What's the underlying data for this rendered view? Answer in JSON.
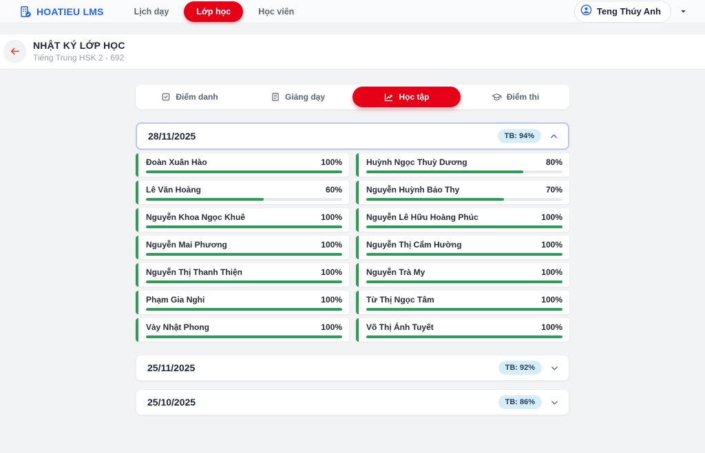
{
  "colors": {
    "accent_red": "#e60017",
    "brand_blue": "#2563eb",
    "progress_green": "#2e9b57",
    "badge_bg": "#d7eef9",
    "expanded_border": "#b9c6f2"
  },
  "navbar": {
    "brand": "HOATIEU LMS",
    "items": [
      {
        "label": "Lịch dạy",
        "active": false
      },
      {
        "label": "Lớp học",
        "active": true
      },
      {
        "label": "Học viên",
        "active": false
      }
    ],
    "user": {
      "name": "Teng Thúy Anh"
    }
  },
  "page_header": {
    "title": "NHẬT KÝ LỚP HỌC",
    "subtitle": "Tiếng Trung HSK 2 - 692"
  },
  "tabs": [
    {
      "label": "Điểm danh",
      "icon": "checkbox-icon",
      "active": false
    },
    {
      "label": "Giảng dạy",
      "icon": "journal-icon",
      "active": false
    },
    {
      "label": "Học tập",
      "icon": "chart-line-icon",
      "active": true
    },
    {
      "label": "Điểm thi",
      "icon": "graduation-cap-icon",
      "active": false
    }
  ],
  "sections": [
    {
      "date": "28/11/2025",
      "average_label": "TB: 94%",
      "expanded": true,
      "students": [
        {
          "name": "Đoàn Xuân Hào",
          "percent": 100,
          "percent_label": "100%"
        },
        {
          "name": "Huỳnh Ngọc Thuỳ Dương",
          "percent": 80,
          "percent_label": "80%"
        },
        {
          "name": "Lê Văn Hoàng",
          "percent": 60,
          "percent_label": "60%"
        },
        {
          "name": "Nguyễn Huỳnh Bảo Thy",
          "percent": 70,
          "percent_label": "70%"
        },
        {
          "name": "Nguyễn Khoa Ngọc Khuê",
          "percent": 100,
          "percent_label": "100%"
        },
        {
          "name": "Nguyễn Lê Hữu Hoàng Phúc",
          "percent": 100,
          "percent_label": "100%"
        },
        {
          "name": "Nguyễn Mai Phương",
          "percent": 100,
          "percent_label": "100%"
        },
        {
          "name": "Nguyễn Thị Cẩm Hường",
          "percent": 100,
          "percent_label": "100%"
        },
        {
          "name": "Nguyễn Thị Thanh Thiện",
          "percent": 100,
          "percent_label": "100%"
        },
        {
          "name": "Nguyễn Trà My",
          "percent": 100,
          "percent_label": "100%"
        },
        {
          "name": "Phạm Gia Nghi",
          "percent": 100,
          "percent_label": "100%"
        },
        {
          "name": "Từ Thị Ngọc Tâm",
          "percent": 100,
          "percent_label": "100%"
        },
        {
          "name": "Vày Nhật Phong",
          "percent": 100,
          "percent_label": "100%"
        },
        {
          "name": "Võ Thị Ánh Tuyết",
          "percent": 100,
          "percent_label": "100%"
        }
      ]
    },
    {
      "date": "25/11/2025",
      "average_label": "TB: 92%",
      "expanded": false,
      "students": []
    },
    {
      "date": "25/10/2025",
      "average_label": "TB: 86%",
      "expanded": false,
      "students": []
    }
  ]
}
